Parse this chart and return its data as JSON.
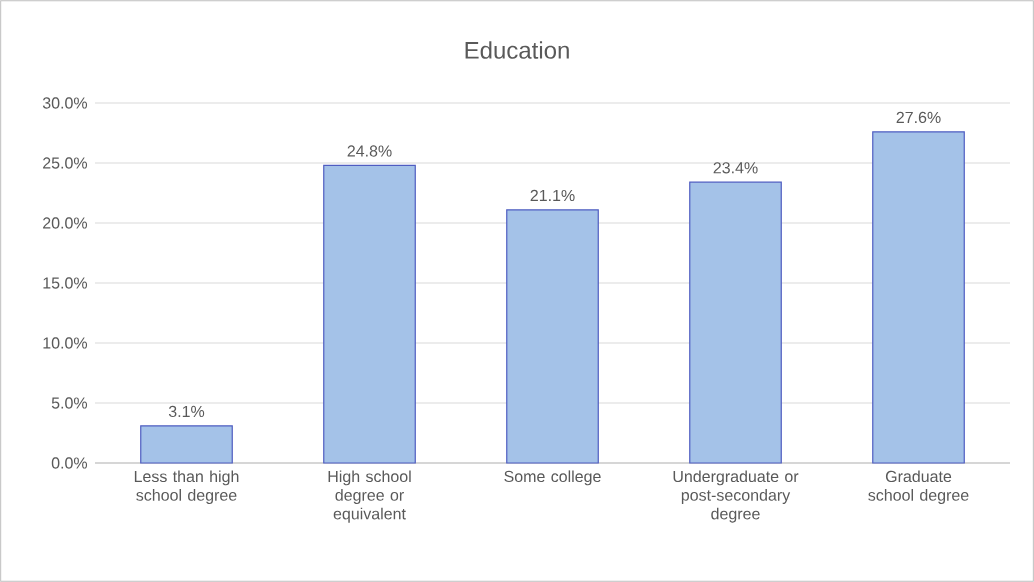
{
  "chart_data": {
    "type": "bar",
    "title": "Education",
    "categories": [
      "Less than high school degree",
      "High school degree or equivalent",
      "Some college",
      "Undergraduate or post-secondary degree",
      "Graduate school degree"
    ],
    "values": [
      3.1,
      24.8,
      21.1,
      23.4,
      27.6
    ],
    "value_labels": [
      "3.1%",
      "24.8%",
      "21.1%",
      "23.4%",
      "27.6%"
    ],
    "color": "#a4c2e8",
    "ylim": [
      0,
      30
    ],
    "yticks": [
      {
        "value": 0,
        "label": "0.0%"
      },
      {
        "value": 5,
        "label": "5.0%"
      },
      {
        "value": 10,
        "label": "10.0%"
      },
      {
        "value": 15,
        "label": "15.0%"
      },
      {
        "value": 20,
        "label": "20.0%"
      },
      {
        "value": 25,
        "label": "25.0%"
      },
      {
        "value": 30,
        "label": "30.0%"
      }
    ],
    "grid": "y"
  }
}
